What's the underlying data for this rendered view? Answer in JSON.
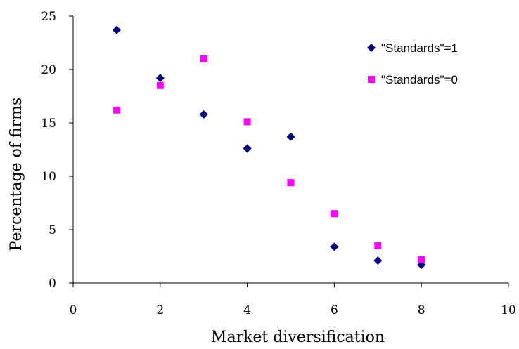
{
  "chart_data": {
    "type": "scatter",
    "title": "",
    "xlabel": "Market diversification",
    "ylabel": "Percentage of firms",
    "xlim": [
      0,
      10
    ],
    "ylim": [
      0,
      25
    ],
    "xticks": [
      "0",
      "2",
      "4",
      "6",
      "8",
      "10"
    ],
    "yticks": [
      "0",
      "5",
      "10",
      "15",
      "20",
      "25"
    ],
    "grid": false,
    "legend_position": "top-right",
    "series": [
      {
        "name": "\"Standards\"=1",
        "marker": "diamond",
        "color": "#000080",
        "points": [
          {
            "x": 1,
            "y": 23.7
          },
          {
            "x": 2,
            "y": 19.2
          },
          {
            "x": 3,
            "y": 15.8
          },
          {
            "x": 4,
            "y": 12.6
          },
          {
            "x": 5,
            "y": 13.7
          },
          {
            "x": 6,
            "y": 3.4
          },
          {
            "x": 7,
            "y": 2.1
          },
          {
            "x": 8,
            "y": 1.7
          }
        ]
      },
      {
        "name": "\"Standards\"=0",
        "marker": "square",
        "color": "#ff00ff",
        "points": [
          {
            "x": 1,
            "y": 16.2
          },
          {
            "x": 2,
            "y": 18.5
          },
          {
            "x": 3,
            "y": 21.0
          },
          {
            "x": 4,
            "y": 15.1
          },
          {
            "x": 5,
            "y": 9.4
          },
          {
            "x": 6,
            "y": 6.5
          },
          {
            "x": 7,
            "y": 3.5
          },
          {
            "x": 8,
            "y": 2.2
          }
        ]
      }
    ]
  }
}
